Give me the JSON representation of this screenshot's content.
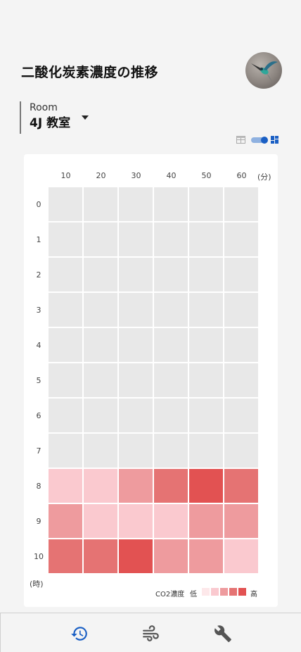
{
  "header": {
    "title": "二酸化炭素濃度の推移"
  },
  "room": {
    "label": "Room",
    "value": "4J 教室"
  },
  "heatmap": {
    "columns": [
      "10",
      "20",
      "30",
      "40",
      "50",
      "60"
    ],
    "column_unit": "(分)",
    "rows": [
      "0",
      "1",
      "2",
      "3",
      "4",
      "5",
      "6",
      "7",
      "8",
      "9",
      "10"
    ],
    "row_unit": "(時)",
    "legend": {
      "label": "CO2濃度",
      "low": "低",
      "high": "高"
    }
  },
  "colors": {
    "empty": "#e8e8e8",
    "levels": [
      "#fde8ea",
      "#fac9cf",
      "#ee9b9e",
      "#e57373",
      "#e25252"
    ],
    "accent": "#1a5fc4"
  },
  "chart_data": {
    "type": "heatmap",
    "x": [
      "10",
      "20",
      "30",
      "40",
      "50",
      "60"
    ],
    "y": [
      "0",
      "1",
      "2",
      "3",
      "4",
      "5",
      "6",
      "7",
      "8",
      "9",
      "10"
    ],
    "level_scale": [
      "低",
      "高"
    ],
    "values": [
      [
        null,
        null,
        null,
        null,
        null,
        null
      ],
      [
        null,
        null,
        null,
        null,
        null,
        null
      ],
      [
        null,
        null,
        null,
        null,
        null,
        null
      ],
      [
        null,
        null,
        null,
        null,
        null,
        null
      ],
      [
        null,
        null,
        null,
        null,
        null,
        null
      ],
      [
        null,
        null,
        null,
        null,
        null,
        null
      ],
      [
        null,
        null,
        null,
        null,
        null,
        null
      ],
      [
        null,
        null,
        null,
        null,
        null,
        null
      ],
      [
        1,
        1,
        2,
        3,
        4,
        3
      ],
      [
        2,
        1,
        1,
        1,
        2,
        2
      ],
      [
        3,
        3,
        4,
        2,
        2,
        1
      ]
    ]
  },
  "nav": {
    "items": [
      {
        "icon": "history-icon",
        "active": true
      },
      {
        "icon": "wind-icon",
        "active": false
      },
      {
        "icon": "wrench-icon",
        "active": false
      }
    ]
  }
}
